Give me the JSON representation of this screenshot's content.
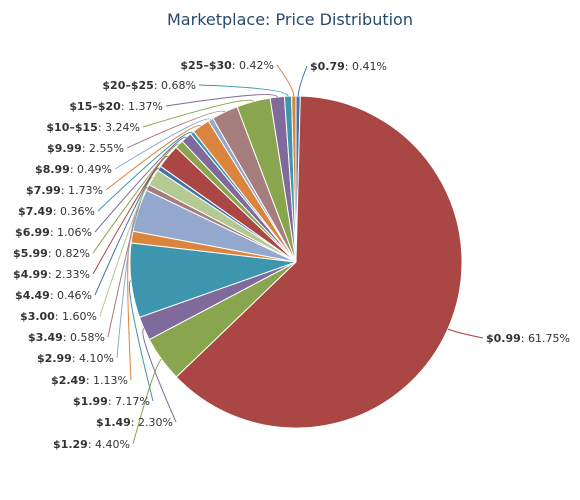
{
  "chart_data": {
    "type": "pie",
    "title": "Marketplace: Price Distribution",
    "slices": [
      {
        "name": "$0.79",
        "value": 0.41,
        "pct": "0.41%",
        "color": "#4572A7"
      },
      {
        "name": "$0.99",
        "value": 61.75,
        "pct": "61.75%",
        "color": "#AA4643"
      },
      {
        "name": "$1.29",
        "value": 4.4,
        "pct": "4.40%",
        "color": "#89A54E"
      },
      {
        "name": "$1.49",
        "value": 2.3,
        "pct": "2.30%",
        "color": "#80699B"
      },
      {
        "name": "$1.99",
        "value": 7.17,
        "pct": "7.17%",
        "color": "#3D96AE"
      },
      {
        "name": "$2.49",
        "value": 1.13,
        "pct": "1.13%",
        "color": "#DB843D"
      },
      {
        "name": "$2.99",
        "value": 4.1,
        "pct": "4.10%",
        "color": "#92A8CD"
      },
      {
        "name": "$3.49",
        "value": 0.58,
        "pct": "0.58%",
        "color": "#A47D7C"
      },
      {
        "name": "$3.00",
        "value": 1.6,
        "pct": "1.60%",
        "color": "#B5CA92"
      },
      {
        "name": "$4.49",
        "value": 0.46,
        "pct": "0.46%",
        "color": "#4572A7"
      },
      {
        "name": "$4.99",
        "value": 2.33,
        "pct": "2.33%",
        "color": "#AA4643"
      },
      {
        "name": "$5.99",
        "value": 0.82,
        "pct": "0.82%",
        "color": "#89A54E"
      },
      {
        "name": "$6.99",
        "value": 1.06,
        "pct": "1.06%",
        "color": "#80699B"
      },
      {
        "name": "$7.49",
        "value": 0.36,
        "pct": "0.36%",
        "color": "#3D96AE"
      },
      {
        "name": "$7.99",
        "value": 1.73,
        "pct": "1.73%",
        "color": "#DB843D"
      },
      {
        "name": "$8.99",
        "value": 0.49,
        "pct": "0.49%",
        "color": "#92A8CD"
      },
      {
        "name": "$9.99",
        "value": 2.55,
        "pct": "2.55%",
        "color": "#A47D7C"
      },
      {
        "name": "$10–$15",
        "value": 3.24,
        "pct": "3.24%",
        "color": "#89A54E"
      },
      {
        "name": "$15–$20",
        "value": 1.37,
        "pct": "1.37%",
        "color": "#80699B"
      },
      {
        "name": "$20–$25",
        "value": 0.68,
        "pct": "0.68%",
        "color": "#3D96AE"
      },
      {
        "name": "$25–$30",
        "value": 0.42,
        "pct": "0.42%",
        "color": "#DB843D"
      }
    ]
  }
}
